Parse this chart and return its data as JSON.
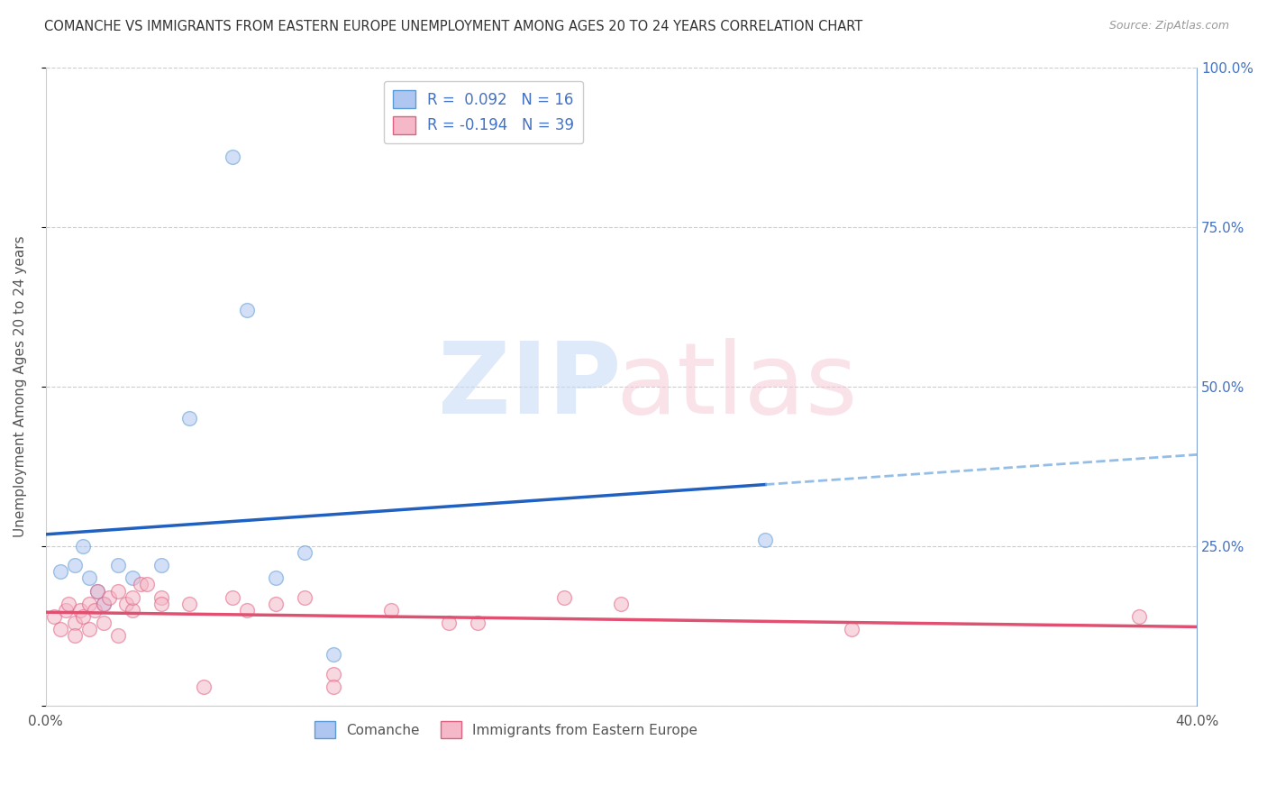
{
  "title": "COMANCHE VS IMMIGRANTS FROM EASTERN EUROPE UNEMPLOYMENT AMONG AGES 20 TO 24 YEARS CORRELATION CHART",
  "source": "Source: ZipAtlas.com",
  "ylabel": "Unemployment Among Ages 20 to 24 years",
  "xmin": 0.0,
  "xmax": 0.4,
  "ymin": 0.0,
  "ymax": 1.0,
  "x_ticks": [
    0.0,
    0.05,
    0.1,
    0.15,
    0.2,
    0.25,
    0.3,
    0.35,
    0.4
  ],
  "x_tick_labels": [
    "0.0%",
    "",
    "",
    "",
    "",
    "",
    "",
    "",
    "40.0%"
  ],
  "y_ticks": [
    0.0,
    0.25,
    0.5,
    0.75,
    1.0
  ],
  "left_y_tick_labels": [
    "",
    "",
    "",
    "",
    ""
  ],
  "right_y_tick_labels": [
    "",
    "25.0%",
    "50.0%",
    "75.0%",
    "100.0%"
  ],
  "comanche_color": "#aec6f0",
  "comanche_edge_color": "#5b9bd5",
  "immigrants_color": "#f4b8c8",
  "immigrants_edge_color": "#e06080",
  "trendline_comanche_solid_color": "#2060c0",
  "trendline_comanche_dash_color": "#7aaee0",
  "trendline_immigrants_color": "#e05070",
  "R_comanche": 0.092,
  "N_comanche": 16,
  "R_immigrants": -0.194,
  "N_immigrants": 39,
  "comanche_x": [
    0.005,
    0.01,
    0.013,
    0.015,
    0.018,
    0.02,
    0.025,
    0.03,
    0.04,
    0.05,
    0.065,
    0.07,
    0.08,
    0.09,
    0.1,
    0.25
  ],
  "comanche_y": [
    0.21,
    0.22,
    0.25,
    0.2,
    0.18,
    0.16,
    0.22,
    0.2,
    0.22,
    0.45,
    0.86,
    0.62,
    0.2,
    0.24,
    0.08,
    0.26
  ],
  "immigrants_x": [
    0.003,
    0.005,
    0.007,
    0.008,
    0.01,
    0.01,
    0.012,
    0.013,
    0.015,
    0.015,
    0.017,
    0.018,
    0.02,
    0.02,
    0.022,
    0.025,
    0.025,
    0.028,
    0.03,
    0.03,
    0.033,
    0.035,
    0.04,
    0.04,
    0.05,
    0.055,
    0.065,
    0.07,
    0.08,
    0.09,
    0.1,
    0.1,
    0.12,
    0.14,
    0.15,
    0.18,
    0.2,
    0.28,
    0.38
  ],
  "immigrants_y": [
    0.14,
    0.12,
    0.15,
    0.16,
    0.13,
    0.11,
    0.15,
    0.14,
    0.12,
    0.16,
    0.15,
    0.18,
    0.16,
    0.13,
    0.17,
    0.18,
    0.11,
    0.16,
    0.15,
    0.17,
    0.19,
    0.19,
    0.17,
    0.16,
    0.16,
    0.03,
    0.17,
    0.15,
    0.16,
    0.17,
    0.05,
    0.03,
    0.15,
    0.13,
    0.13,
    0.17,
    0.16,
    0.12,
    0.14
  ],
  "legend_label_comanche": "Comanche",
  "legend_label_immigrants": "Immigrants from Eastern Europe",
  "marker_size": 130,
  "marker_alpha": 0.55
}
